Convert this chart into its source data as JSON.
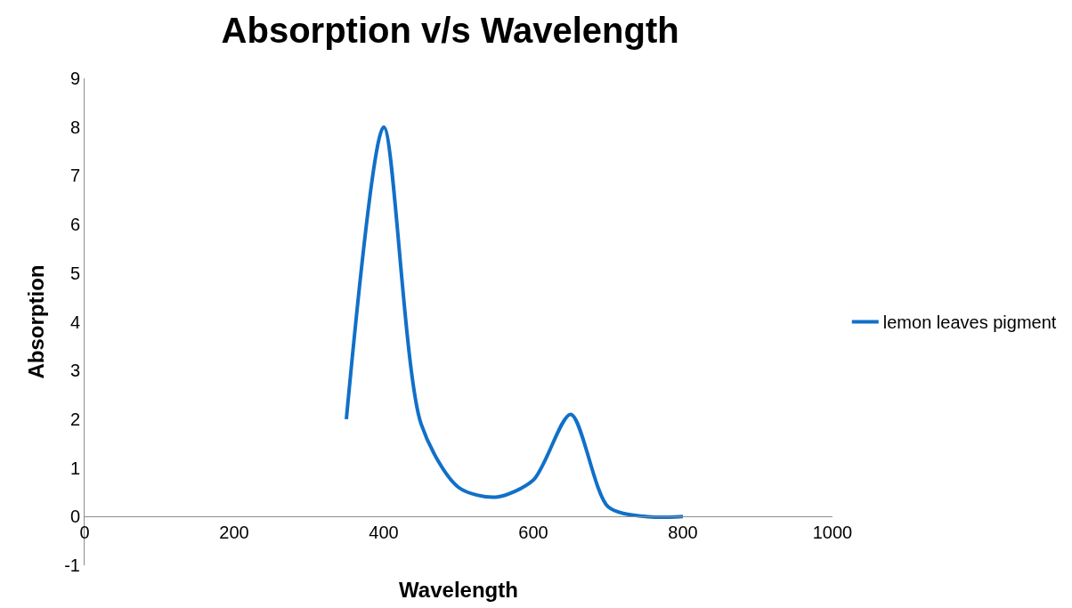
{
  "chart_data": {
    "type": "line",
    "title": "Absorption v/s Wavelength",
    "xlabel": "Wavelength",
    "ylabel": "Absorption",
    "x": [
      350,
      400,
      450,
      500,
      550,
      600,
      650,
      700,
      750,
      800
    ],
    "series": [
      {
        "name": "lemon leaves pigment",
        "color": "#1170c8",
        "values": [
          2,
          8,
          1.9,
          0.6,
          0.4,
          0.75,
          2.1,
          0.2,
          0,
          0
        ]
      }
    ],
    "xlim": [
      0,
      1000
    ],
    "xticks": [
      0,
      200,
      400,
      600,
      800,
      1000
    ],
    "ylim": [
      -1,
      9
    ],
    "yticks": [
      -1,
      0,
      1,
      2,
      3,
      4,
      5,
      6,
      7,
      8,
      9
    ],
    "grid": false,
    "legend": "right",
    "marker": "none",
    "line_style": "solid"
  }
}
